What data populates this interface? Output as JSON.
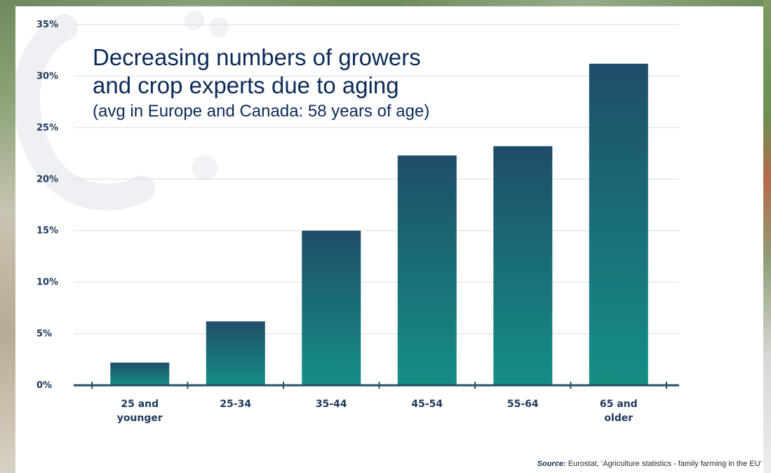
{
  "colors": {
    "bar_top": "#1e4d69",
    "bar_bottom": "#158f84",
    "axis": "#245168",
    "grid": "#d8dbe0",
    "tick_label": "#1d3a5a",
    "title": "#0b2b57"
  },
  "title": {
    "line1": "Decreasing numbers of growers",
    "line2": "and crop experts due to aging",
    "subtitle": "(avg in Europe and Canada: 58 years of age)"
  },
  "source": {
    "label": "Source:",
    "text": "Eurostat, ‘Agriculture statistics - family farming in the EU’"
  },
  "chart_data": {
    "type": "bar",
    "title": "Decreasing numbers of growers and crop experts due to aging",
    "subtitle": "(avg in Europe and Canada: 58 years of age)",
    "categories": [
      [
        "25 and",
        "younger"
      ],
      [
        "25-34"
      ],
      [
        "35-44"
      ],
      [
        "45-54"
      ],
      [
        "55-64"
      ],
      [
        "65 and",
        "older"
      ]
    ],
    "values": [
      2.2,
      6.2,
      15.0,
      22.3,
      23.2,
      31.2
    ],
    "ylim": [
      0,
      35
    ],
    "yticks": [
      0,
      5,
      10,
      15,
      20,
      25,
      30,
      35
    ],
    "ytick_labels": [
      "0%",
      "5%",
      "10%",
      "15%",
      "20%",
      "25%",
      "30%",
      "35%"
    ],
    "grid": true,
    "legend": "none"
  }
}
